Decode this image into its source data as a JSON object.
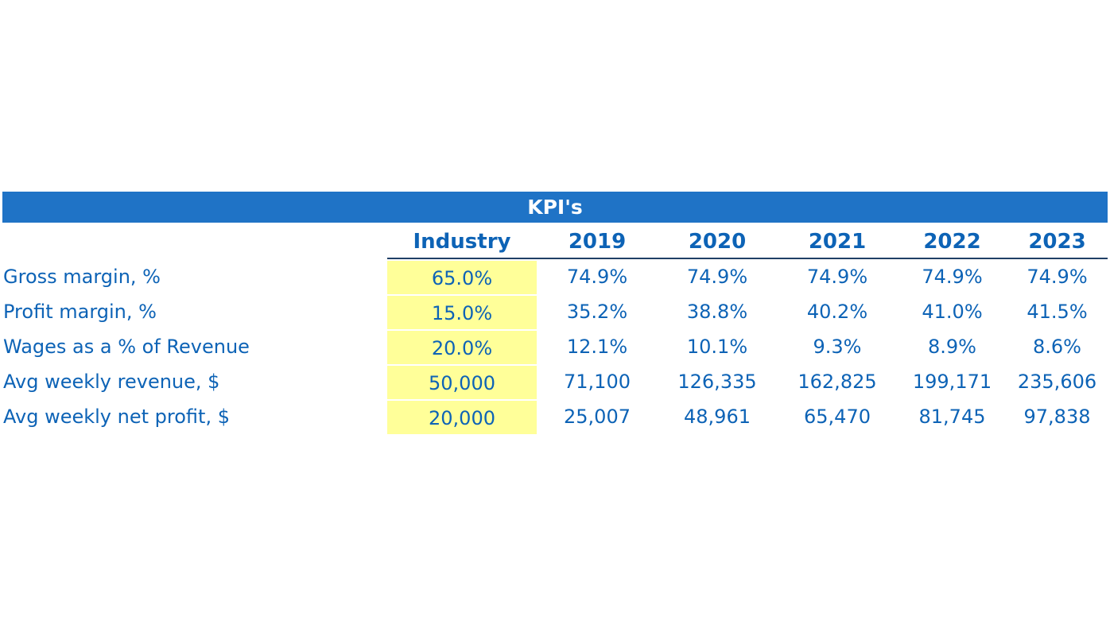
{
  "title": "KPI's",
  "columns": [
    "Industry",
    "2019",
    "2020",
    "2021",
    "2022",
    "2023"
  ],
  "rows": [
    {
      "label": "Gross margin, %",
      "values": [
        "65.0%",
        "74.9%",
        "74.9%",
        "74.9%",
        "74.9%",
        "74.9%"
      ]
    },
    {
      "label": "Profit margin, %",
      "values": [
        "15.0%",
        "35.2%",
        "38.8%",
        "40.2%",
        "41.0%",
        "41.5%"
      ]
    },
    {
      "label": "Wages as a % of Revenue",
      "values": [
        "20.0%",
        "12.1%",
        "10.1%",
        "9.3%",
        "8.9%",
        "8.6%"
      ]
    },
    {
      "label": "Avg weekly revenue, $",
      "values": [
        "50,000",
        "71,100",
        "126,335",
        "162,825",
        "199,171",
        "235,606"
      ]
    },
    {
      "label": "Avg weekly net profit, $",
      "values": [
        "20,000",
        "25,007",
        "48,961",
        "65,470",
        "81,745",
        "97,838"
      ]
    }
  ],
  "colors": {
    "title_bar": "#1f73c6",
    "text": "#0d63b6",
    "industry_highlight": "#ffff99",
    "header_rule": "#1f3f66"
  }
}
